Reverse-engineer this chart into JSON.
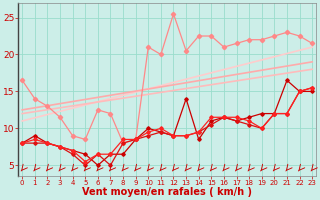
{
  "background_color": "#cceee8",
  "grid_color": "#99ddcc",
  "x_label": "Vent moyen/en rafales ( km/h )",
  "x_ticks": [
    0,
    1,
    2,
    3,
    4,
    5,
    6,
    7,
    8,
    9,
    10,
    11,
    12,
    13,
    14,
    15,
    16,
    17,
    18,
    19,
    20,
    21,
    22,
    23
  ],
  "y_ticks": [
    5,
    10,
    15,
    20,
    25
  ],
  "ylim": [
    3.5,
    27
  ],
  "xlim": [
    -0.3,
    23.3
  ],
  "line_light_scatter": {
    "color": "#ff8888",
    "x": [
      0,
      1,
      2,
      3,
      4,
      5,
      6,
      7,
      8,
      9,
      10,
      11,
      12,
      13,
      14,
      15,
      16,
      17,
      18,
      19,
      20,
      21,
      22,
      23
    ],
    "y": [
      16.5,
      14.0,
      13.0,
      11.5,
      9.0,
      8.5,
      12.5,
      12.0,
      8.0,
      8.5,
      21.0,
      20.0,
      25.5,
      20.5,
      22.5,
      22.5,
      21.0,
      21.5,
      22.0,
      22.0,
      22.5,
      23.0,
      22.5,
      21.5
    ]
  },
  "line_trend1": {
    "color": "#ffaaaa",
    "x": [
      0,
      23
    ],
    "y": [
      12.5,
      19.0
    ]
  },
  "line_trend2": {
    "color": "#ffbbbb",
    "x": [
      0,
      23
    ],
    "y": [
      12.0,
      18.0
    ]
  },
  "line_trend3": {
    "color": "#ffcccc",
    "x": [
      0,
      23
    ],
    "y": [
      11.0,
      21.0
    ]
  },
  "line_dark1": {
    "color": "#cc0000",
    "x": [
      0,
      1,
      2,
      3,
      4,
      5,
      6,
      7,
      8,
      9,
      10,
      11,
      12,
      13,
      14,
      15,
      16,
      17,
      18,
      19,
      20,
      21,
      22,
      23
    ],
    "y": [
      8.0,
      9.0,
      8.0,
      7.5,
      7.0,
      6.5,
      5.0,
      6.5,
      6.5,
      8.5,
      10.0,
      9.5,
      9.0,
      14.0,
      8.5,
      11.0,
      11.5,
      11.0,
      11.5,
      12.0,
      12.0,
      16.5,
      15.0,
      15.0
    ]
  },
  "line_dark2": {
    "color": "#dd1111",
    "x": [
      0,
      1,
      2,
      3,
      4,
      5,
      6,
      7,
      8,
      9,
      10,
      11,
      12,
      13,
      14,
      15,
      16,
      17,
      18,
      19,
      20,
      21,
      22,
      23
    ],
    "y": [
      8.0,
      8.0,
      8.0,
      7.5,
      6.5,
      5.0,
      6.5,
      5.0,
      8.0,
      8.5,
      9.0,
      9.5,
      9.0,
      9.0,
      9.5,
      10.5,
      11.5,
      11.0,
      10.5,
      10.0,
      12.0,
      12.0,
      15.0,
      15.5
    ]
  },
  "line_dark3": {
    "color": "#ff2222",
    "x": [
      0,
      1,
      2,
      3,
      4,
      5,
      6,
      7,
      8,
      9,
      10,
      11,
      12,
      13,
      14,
      15,
      16,
      17,
      18,
      19,
      20,
      21,
      22,
      23
    ],
    "y": [
      8.0,
      8.5,
      8.0,
      7.5,
      7.0,
      5.5,
      6.5,
      6.5,
      8.5,
      8.5,
      9.5,
      10.0,
      9.0,
      9.0,
      9.5,
      11.5,
      11.5,
      11.5,
      11.0,
      10.0,
      12.0,
      12.0,
      15.0,
      15.5
    ]
  },
  "arrow_color": "#cc0000",
  "tick_color": "#cc0000",
  "axis_label_color": "#cc0000",
  "xlabel_fontsize": 7.0,
  "xlabel_fontweight": "bold",
  "ytick_fontsize": 6.5,
  "xtick_fontsize": 5.0
}
